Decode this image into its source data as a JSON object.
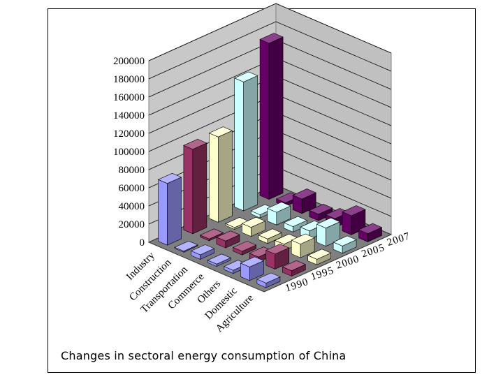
{
  "caption": "Changes in sectoral energy consumption of China",
  "chart_data": {
    "type": "bar",
    "categories": [
      "Industry",
      "Construction",
      "Transportation",
      "Commerce",
      "Others",
      "Domestic",
      "Agriculture"
    ],
    "depth_categories": [
      "1990",
      "1995",
      "2000",
      "2005",
      "2007"
    ],
    "y_ticks": [
      "0",
      "20000",
      "40000",
      "60000",
      "80000",
      "100000",
      "120000",
      "140000",
      "160000",
      "180000",
      "200000"
    ],
    "ylim": [
      0,
      200000
    ],
    "grid": true,
    "series": [
      {
        "name": "1990",
        "color": "#9999ff",
        "values": [
          68000,
          1200,
          5000,
          2500,
          3500,
          15000,
          5000
        ]
      },
      {
        "name": "1995",
        "color": "#993366",
        "values": [
          93000,
          2000,
          7500,
          4000,
          5500,
          16500,
          6000
        ]
      },
      {
        "name": "2000",
        "color": "#ffffcc",
        "values": [
          94000,
          2000,
          10000,
          5000,
          7000,
          15000,
          6000
        ]
      },
      {
        "name": "2005",
        "color": "#ccffff",
        "values": [
          142000,
          3500,
          14000,
          6000,
          9000,
          20000,
          8000
        ]
      },
      {
        "name": "2007",
        "color": "#660066",
        "values": [
          172000,
          4000,
          16000,
          7000,
          10000,
          21000,
          9000
        ]
      }
    ]
  }
}
